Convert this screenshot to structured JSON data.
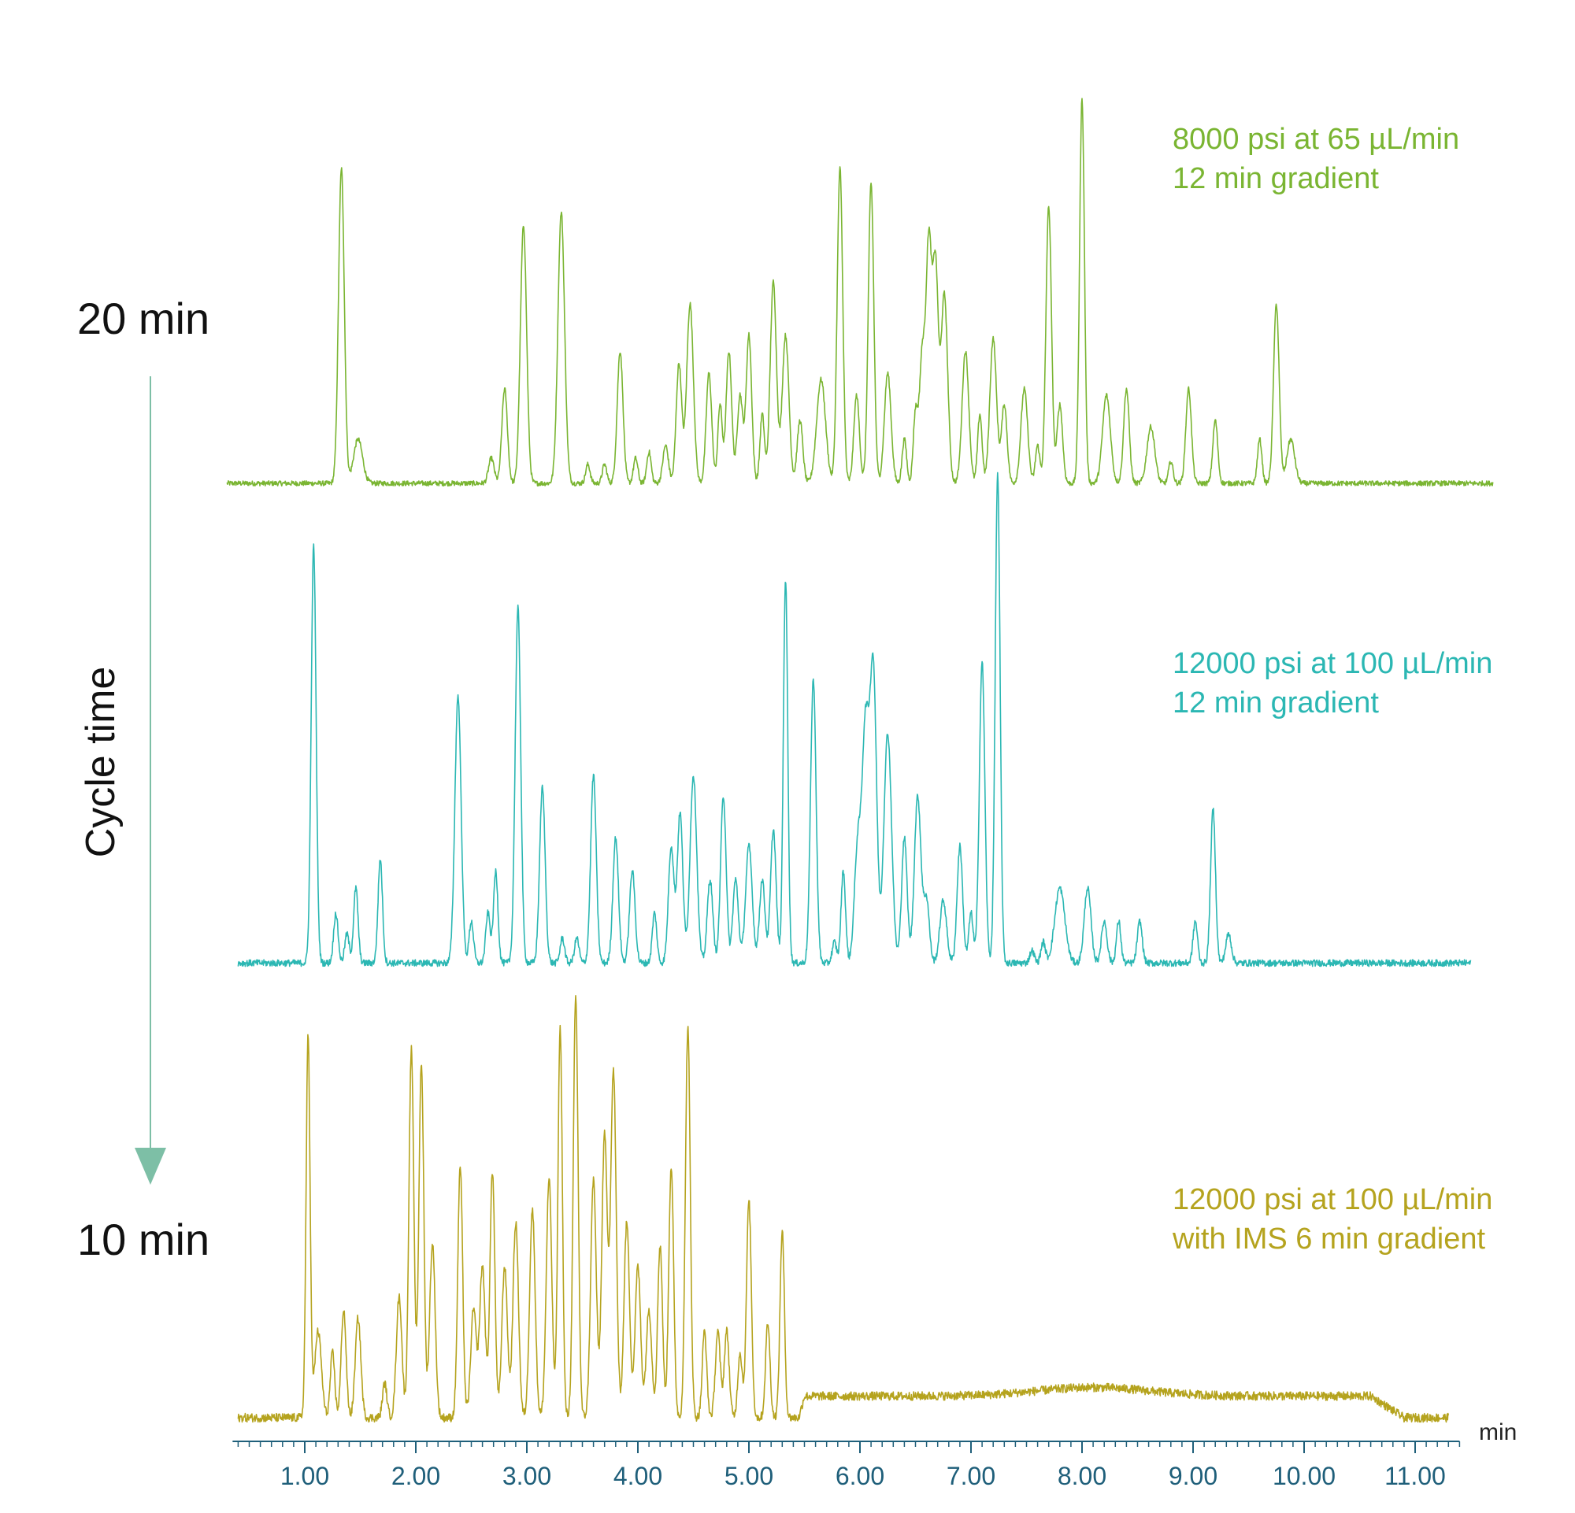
{
  "cycle_time": {
    "top": "20 min",
    "bottom": "10 min",
    "label": "Cycle time",
    "arrow_color": "#7dbfa6"
  },
  "chart_data": {
    "type": "line",
    "xlabel": "min",
    "xlim": [
      0.35,
      11.4
    ],
    "x_ticks": [
      "1.00",
      "2.00",
      "3.00",
      "4.00",
      "5.00",
      "6.00",
      "7.00",
      "8.00",
      "9.00",
      "10.00",
      "11.00"
    ],
    "axis_color": "#1f5f7a",
    "grid": false,
    "series": [
      {
        "label_lines": [
          "8000 psi at 65 µL/min",
          "12 min gradient"
        ],
        "color": "#7ab532",
        "x_start": 0.3,
        "x_end": 11.7,
        "baseline": 0.02,
        "noise": 0.008,
        "peaks": [
          [
            1.33,
            1.0,
            0.026
          ],
          [
            1.48,
            0.14,
            0.04
          ],
          [
            2.68,
            0.08,
            0.025
          ],
          [
            2.8,
            0.3,
            0.025
          ],
          [
            2.97,
            0.82,
            0.028
          ],
          [
            3.31,
            0.86,
            0.03
          ],
          [
            3.55,
            0.06,
            0.02
          ],
          [
            3.7,
            0.06,
            0.02
          ],
          [
            3.84,
            0.42,
            0.026
          ],
          [
            3.98,
            0.08,
            0.02
          ],
          [
            4.1,
            0.1,
            0.02
          ],
          [
            4.25,
            0.12,
            0.025
          ],
          [
            4.37,
            0.38,
            0.025
          ],
          [
            4.47,
            0.57,
            0.03
          ],
          [
            4.64,
            0.35,
            0.025
          ],
          [
            4.74,
            0.25,
            0.02
          ],
          [
            4.82,
            0.42,
            0.025
          ],
          [
            4.92,
            0.28,
            0.025
          ],
          [
            5.0,
            0.47,
            0.025
          ],
          [
            5.12,
            0.22,
            0.02
          ],
          [
            5.22,
            0.64,
            0.028
          ],
          [
            5.33,
            0.47,
            0.03
          ],
          [
            5.46,
            0.2,
            0.025
          ],
          [
            5.65,
            0.33,
            0.04
          ],
          [
            5.82,
            1.0,
            0.025
          ],
          [
            5.97,
            0.28,
            0.025
          ],
          [
            6.1,
            0.95,
            0.025
          ],
          [
            6.25,
            0.35,
            0.03
          ],
          [
            6.4,
            0.14,
            0.02
          ],
          [
            6.5,
            0.22,
            0.02
          ],
          [
            6.56,
            0.4,
            0.025
          ],
          [
            6.62,
            0.75,
            0.025
          ],
          [
            6.68,
            0.68,
            0.025
          ],
          [
            6.76,
            0.6,
            0.03
          ],
          [
            6.95,
            0.42,
            0.03
          ],
          [
            7.08,
            0.22,
            0.02
          ],
          [
            7.2,
            0.46,
            0.03
          ],
          [
            7.3,
            0.25,
            0.025
          ],
          [
            7.48,
            0.3,
            0.03
          ],
          [
            7.6,
            0.12,
            0.02
          ],
          [
            7.7,
            0.88,
            0.025
          ],
          [
            7.8,
            0.25,
            0.025
          ],
          [
            8.0,
            1.22,
            0.022
          ],
          [
            8.22,
            0.28,
            0.035
          ],
          [
            8.4,
            0.3,
            0.025
          ],
          [
            8.62,
            0.18,
            0.035
          ],
          [
            8.8,
            0.07,
            0.02
          ],
          [
            8.96,
            0.3,
            0.025
          ],
          [
            9.2,
            0.2,
            0.022
          ],
          [
            9.6,
            0.14,
            0.02
          ],
          [
            9.75,
            0.57,
            0.025
          ],
          [
            9.88,
            0.14,
            0.035
          ]
        ]
      },
      {
        "label_lines": [
          "12000 psi at 100 µL/min",
          "12 min gradient"
        ],
        "color": "#2bb7b3",
        "x_start": 0.4,
        "x_end": 11.5,
        "baseline": 0.02,
        "noise": 0.008,
        "peaks": [
          [
            1.08,
            1.0,
            0.022
          ],
          [
            1.28,
            0.12,
            0.02
          ],
          [
            1.38,
            0.07,
            0.02
          ],
          [
            1.46,
            0.18,
            0.02
          ],
          [
            1.68,
            0.25,
            0.02
          ],
          [
            2.38,
            0.64,
            0.028
          ],
          [
            2.5,
            0.1,
            0.02
          ],
          [
            2.65,
            0.12,
            0.02
          ],
          [
            2.72,
            0.22,
            0.02
          ],
          [
            2.92,
            0.85,
            0.025
          ],
          [
            3.14,
            0.42,
            0.025
          ],
          [
            3.32,
            0.06,
            0.02
          ],
          [
            3.45,
            0.06,
            0.02
          ],
          [
            3.6,
            0.45,
            0.025
          ],
          [
            3.8,
            0.3,
            0.025
          ],
          [
            3.95,
            0.22,
            0.025
          ],
          [
            4.15,
            0.12,
            0.02
          ],
          [
            4.3,
            0.28,
            0.025
          ],
          [
            4.38,
            0.36,
            0.025
          ],
          [
            4.5,
            0.45,
            0.03
          ],
          [
            4.65,
            0.2,
            0.025
          ],
          [
            4.77,
            0.4,
            0.025
          ],
          [
            4.88,
            0.2,
            0.025
          ],
          [
            5.0,
            0.28,
            0.03
          ],
          [
            5.12,
            0.2,
            0.025
          ],
          [
            5.22,
            0.32,
            0.025
          ],
          [
            5.33,
            0.92,
            0.02
          ],
          [
            5.58,
            0.68,
            0.025
          ],
          [
            5.77,
            0.05,
            0.02
          ],
          [
            5.85,
            0.22,
            0.02
          ],
          [
            5.98,
            0.28,
            0.03
          ],
          [
            6.05,
            0.55,
            0.03
          ],
          [
            6.12,
            0.7,
            0.03
          ],
          [
            6.25,
            0.55,
            0.035
          ],
          [
            6.4,
            0.3,
            0.025
          ],
          [
            6.52,
            0.4,
            0.03
          ],
          [
            6.6,
            0.15,
            0.025
          ],
          [
            6.75,
            0.15,
            0.03
          ],
          [
            6.9,
            0.28,
            0.025
          ],
          [
            7.0,
            0.12,
            0.02
          ],
          [
            7.1,
            0.72,
            0.025
          ],
          [
            7.24,
            1.17,
            0.022
          ],
          [
            7.55,
            0.03,
            0.02
          ],
          [
            7.65,
            0.05,
            0.02
          ],
          [
            7.8,
            0.18,
            0.045
          ],
          [
            8.05,
            0.18,
            0.03
          ],
          [
            8.2,
            0.1,
            0.025
          ],
          [
            8.33,
            0.1,
            0.02
          ],
          [
            8.52,
            0.1,
            0.022
          ],
          [
            9.02,
            0.1,
            0.02
          ],
          [
            9.18,
            0.37,
            0.022
          ],
          [
            9.32,
            0.07,
            0.025
          ]
        ]
      },
      {
        "label_lines": [
          "12000 psi at 100 µL/min",
          "with IMS 6 min gradient"
        ],
        "color": "#b5a31e",
        "x_start": 0.4,
        "x_end": 11.3,
        "baseline": 0.02,
        "noise": 0.01,
        "peaks": [
          [
            1.03,
            0.88,
            0.018
          ],
          [
            1.12,
            0.2,
            0.03
          ],
          [
            1.25,
            0.15,
            0.02
          ],
          [
            1.35,
            0.25,
            0.022
          ],
          [
            1.48,
            0.23,
            0.025
          ],
          [
            1.72,
            0.08,
            0.02
          ],
          [
            1.85,
            0.28,
            0.025
          ],
          [
            1.96,
            0.85,
            0.022
          ],
          [
            2.05,
            0.82,
            0.022
          ],
          [
            2.15,
            0.4,
            0.025
          ],
          [
            2.4,
            0.58,
            0.022
          ],
          [
            2.52,
            0.25,
            0.025
          ],
          [
            2.6,
            0.35,
            0.025
          ],
          [
            2.69,
            0.57,
            0.022
          ],
          [
            2.8,
            0.35,
            0.025
          ],
          [
            2.9,
            0.45,
            0.025
          ],
          [
            3.05,
            0.48,
            0.025
          ],
          [
            3.2,
            0.55,
            0.025
          ],
          [
            3.3,
            0.9,
            0.02
          ],
          [
            3.44,
            0.97,
            0.022
          ],
          [
            3.6,
            0.55,
            0.025
          ],
          [
            3.7,
            0.65,
            0.025
          ],
          [
            3.78,
            0.8,
            0.025
          ],
          [
            3.9,
            0.45,
            0.025
          ],
          [
            4.0,
            0.35,
            0.025
          ],
          [
            4.1,
            0.25,
            0.025
          ],
          [
            4.2,
            0.4,
            0.022
          ],
          [
            4.3,
            0.58,
            0.022
          ],
          [
            4.45,
            0.9,
            0.022
          ],
          [
            4.6,
            0.2,
            0.02
          ],
          [
            4.72,
            0.2,
            0.022
          ],
          [
            4.8,
            0.2,
            0.022
          ],
          [
            4.92,
            0.15,
            0.02
          ],
          [
            5.0,
            0.5,
            0.022
          ],
          [
            5.17,
            0.22,
            0.02
          ],
          [
            5.3,
            0.43,
            0.02
          ]
        ],
        "plateau": {
          "from": 5.45,
          "to": 10.6,
          "level": 0.05,
          "bump_center": 8.1,
          "bump_height": 0.02
        }
      }
    ]
  }
}
